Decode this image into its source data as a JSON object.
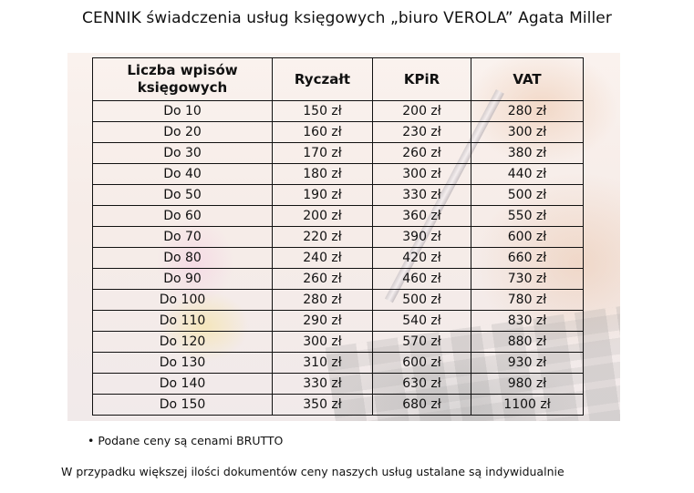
{
  "title": "CENNIK świadczenia usług księgowych „biuro VEROLA” Agata Miller",
  "table": {
    "headers": [
      "Liczba wpisów księgowych",
      "Ryczałt",
      "KPiR",
      "VAT"
    ],
    "rows": [
      [
        "Do 10",
        "150 zł",
        "200 zł",
        "280 zł"
      ],
      [
        "Do 20",
        "160 zł",
        "230 zł",
        "300 zł"
      ],
      [
        "Do 30",
        "170 zł",
        "260 zł",
        "380 zł"
      ],
      [
        "Do 40",
        "180 zł",
        "300 zł",
        "440 zł"
      ],
      [
        "Do 50",
        "190 zł",
        "330 zł",
        "500 zł"
      ],
      [
        "Do 60",
        "200 zł",
        "360 zł",
        "550 zł"
      ],
      [
        "Do 70",
        "220 zł",
        "390 zł",
        "600 zł"
      ],
      [
        "Do 80",
        "240 zł",
        "420 zł",
        "660 zł"
      ],
      [
        "Do 90",
        "260 zł",
        "460 zł",
        "730 zł"
      ],
      [
        "Do 100",
        "280 zł",
        "500 zł",
        "780 zł"
      ],
      [
        "Do 110",
        "290 zł",
        "540 zł",
        "830 zł"
      ],
      [
        "Do 120",
        "300 zł",
        "570 zł",
        "880 zł"
      ],
      [
        "Do 130",
        "310 zł",
        "600 zł",
        "930 zł"
      ],
      [
        "Do 140",
        "330 zł",
        "630 zł",
        "980 zł"
      ],
      [
        "Do 150",
        "350 zł",
        "680 zł",
        "1100 zł"
      ]
    ]
  },
  "note": "Podane ceny są cenami BRUTTO",
  "footer": "W przypadku większej ilości dokumentów ceny naszych usług ustalane są indywidualnie"
}
